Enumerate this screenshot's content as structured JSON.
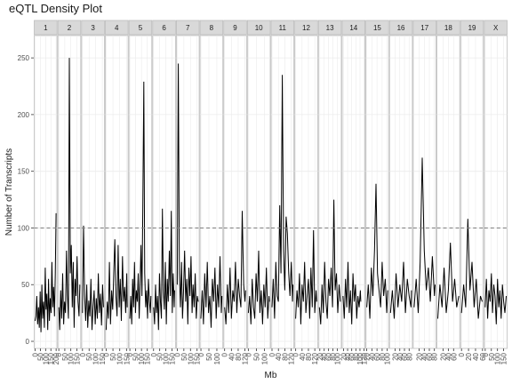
{
  "chart_data": {
    "type": "line",
    "title": "eQTL Density Plot",
    "xlabel": "Mb",
    "ylabel": "Number of Transcripts",
    "ylim": [
      0,
      265
    ],
    "y_ticks": [
      0,
      50,
      100,
      150,
      200,
      250
    ],
    "threshold": 100,
    "grid": true,
    "panels": [
      {
        "name": "1",
        "x_ticks": [
          "0",
          "50",
          "100",
          "150",
          "200"
        ],
        "x": [
          0,
          8,
          16,
          24,
          32,
          40,
          48,
          56,
          64,
          72,
          80,
          88,
          96,
          104,
          112,
          120,
          128,
          136,
          144,
          152,
          160,
          168,
          176,
          184,
          192,
          200
        ],
        "values": [
          18,
          22,
          40,
          15,
          30,
          12,
          44,
          8,
          50,
          20,
          35,
          12,
          65,
          28,
          42,
          10,
          55,
          18,
          38,
          25,
          70,
          30,
          48,
          22,
          60,
          113
        ]
      },
      {
        "name": "2",
        "x_ticks": [
          "0",
          "50",
          "100",
          "150"
        ],
        "x": [
          0,
          8,
          16,
          24,
          32,
          40,
          48,
          56,
          64,
          72,
          80,
          88,
          96,
          104,
          112,
          120,
          128,
          136,
          144,
          152,
          160,
          168,
          175
        ],
        "values": [
          30,
          10,
          45,
          20,
          60,
          15,
          35,
          25,
          80,
          40,
          20,
          250,
          60,
          85,
          30,
          70,
          12,
          55,
          40,
          75,
          35,
          22,
          50
        ]
      },
      {
        "name": "3",
        "x_ticks": [
          "0",
          "50",
          "100",
          "150"
        ],
        "x": [
          0,
          8,
          16,
          24,
          32,
          40,
          48,
          56,
          64,
          72,
          80,
          88,
          96,
          104,
          112,
          120,
          128,
          136,
          144,
          152,
          159
        ],
        "values": [
          25,
          102,
          40,
          18,
          50,
          12,
          36,
          22,
          55,
          10,
          30,
          45,
          15,
          38,
          20,
          60,
          25,
          42,
          14,
          50,
          30
        ]
      },
      {
        "name": "4",
        "x_ticks": [
          "0",
          "50",
          "100",
          "150"
        ],
        "x": [
          0,
          8,
          16,
          24,
          32,
          40,
          48,
          56,
          64,
          72,
          80,
          88,
          96,
          104,
          112,
          120,
          128,
          136,
          144,
          152,
          155
        ],
        "values": [
          10,
          35,
          20,
          70,
          15,
          45,
          28,
          60,
          90,
          40,
          22,
          85,
          30,
          55,
          18,
          75,
          35,
          48,
          25,
          60,
          30
        ]
      },
      {
        "name": "5",
        "x_ticks": [
          "0",
          "50",
          "100",
          "150"
        ],
        "x": [
          0,
          8,
          16,
          24,
          32,
          40,
          48,
          56,
          64,
          72,
          80,
          88,
          96,
          104,
          112,
          120,
          128,
          136,
          144,
          152,
          160,
          168,
          176,
          181
        ],
        "values": [
          20,
          40,
          15,
          55,
          30,
          70,
          25,
          45,
          35,
          60,
          20,
          50,
          85,
          40,
          120,
          229,
          60,
          30,
          45,
          20,
          55,
          35,
          25,
          40
        ]
      },
      {
        "name": "6",
        "x_ticks": [
          "0",
          "50",
          "100",
          "150"
        ],
        "x": [
          0,
          8,
          16,
          24,
          32,
          40,
          48,
          56,
          64,
          72,
          80,
          88,
          96,
          104,
          112,
          120,
          128,
          136,
          144,
          152,
          160,
          168,
          171
        ],
        "values": [
          30,
          15,
          50,
          25,
          40,
          10,
          60,
          35,
          20,
          117,
          45,
          28,
          70,
          15,
          55,
          35,
          80,
          40,
          115,
          25,
          60,
          30,
          45
        ]
      },
      {
        "name": "7",
        "x_ticks": [
          "0",
          "50",
          "100",
          "150"
        ],
        "x": [
          0,
          8,
          16,
          24,
          32,
          40,
          48,
          56,
          64,
          72,
          80,
          88,
          96,
          104,
          112,
          120,
          128,
          136,
          144,
          152,
          159
        ],
        "values": [
          50,
          245,
          60,
          30,
          70,
          20,
          45,
          80,
          35,
          55,
          15,
          65,
          40,
          75,
          25,
          50,
          30,
          60,
          20,
          40,
          35
        ]
      },
      {
        "name": "8",
        "x_ticks": [
          "0",
          "50",
          "100"
        ],
        "x": [
          0,
          8,
          16,
          24,
          32,
          40,
          48,
          56,
          64,
          72,
          80,
          88,
          96,
          104,
          112,
          120,
          128,
          132
        ],
        "values": [
          20,
          45,
          15,
          60,
          30,
          70,
          25,
          40,
          12,
          55,
          35,
          65,
          20,
          50,
          30,
          75,
          25,
          40
        ]
      },
      {
        "name": "9",
        "x_ticks": [
          "0",
          "40",
          "80",
          "120"
        ],
        "x": [
          0,
          8,
          16,
          24,
          32,
          40,
          48,
          56,
          64,
          72,
          80,
          88,
          96,
          104,
          112,
          120,
          124
        ],
        "values": [
          30,
          15,
          50,
          25,
          65,
          20,
          45,
          35,
          70,
          25,
          55,
          40,
          30,
          115,
          50,
          35,
          45
        ]
      },
      {
        "name": "10",
        "x_ticks": [
          "0",
          "50",
          "100"
        ],
        "x": [
          0,
          8,
          16,
          24,
          32,
          40,
          48,
          56,
          64,
          72,
          80,
          88,
          96,
          104,
          112,
          120,
          128,
          130
        ],
        "values": [
          25,
          40,
          15,
          55,
          30,
          20,
          60,
          35,
          80,
          25,
          45,
          15,
          50,
          30,
          65,
          20,
          40,
          35
        ]
      },
      {
        "name": "11",
        "x_ticks": [
          "0",
          "40",
          "80",
          "120"
        ],
        "x": [
          0,
          8,
          16,
          24,
          32,
          40,
          48,
          56,
          64,
          72,
          80,
          88,
          96,
          104,
          112,
          120,
          128,
          131
        ],
        "values": [
          30,
          55,
          20,
          70,
          40,
          35,
          120,
          60,
          235,
          80,
          45,
          110,
          95,
          60,
          40,
          70,
          35,
          50
        ]
      },
      {
        "name": "12",
        "x_ticks": [
          "0",
          "40",
          "80",
          "120"
        ],
        "x": [
          0,
          8,
          16,
          24,
          32,
          40,
          48,
          56,
          64,
          72,
          80,
          88,
          96,
          104,
          112,
          120,
          128,
          132
        ],
        "values": [
          20,
          45,
          30,
          60,
          15,
          50,
          35,
          70,
          25,
          40,
          55,
          20,
          65,
          30,
          98,
          25,
          45,
          35
        ]
      },
      {
        "name": "13",
        "x_ticks": [
          "20",
          "40",
          "60",
          "80",
          "100"
        ],
        "x": [
          18,
          24,
          30,
          36,
          42,
          48,
          54,
          60,
          66,
          72,
          78,
          84,
          90,
          96,
          102,
          108,
          114
        ],
        "values": [
          30,
          15,
          50,
          25,
          70,
          35,
          20,
          55,
          40,
          65,
          30,
          125,
          45,
          60,
          25,
          50,
          35
        ]
      },
      {
        "name": "14",
        "x_ticks": [
          "20",
          "40",
          "60",
          "80",
          "100",
          "120"
        ],
        "x": [
          18,
          24,
          30,
          36,
          42,
          48,
          54,
          60,
          66,
          72,
          78,
          84,
          90,
          96,
          102,
          104
        ],
        "values": [
          40,
          20,
          55,
          30,
          70,
          25,
          45,
          15,
          60,
          35,
          50,
          20,
          40,
          30,
          45,
          35
        ]
      },
      {
        "name": "15",
        "x_ticks": [
          "20",
          "40",
          "60",
          "80",
          "100"
        ],
        "x": [
          20,
          26,
          32,
          38,
          44,
          50,
          56,
          62,
          68,
          74,
          80,
          86,
          92,
          98,
          102
        ],
        "values": [
          30,
          50,
          20,
          65,
          40,
          80,
          139,
          60,
          45,
          30,
          70,
          40,
          55,
          25,
          45
        ]
      },
      {
        "name": "16",
        "x_ticks": [
          "20",
          "40",
          "60",
          "80"
        ],
        "x": [
          0,
          8,
          16,
          24,
          32,
          40,
          48,
          56,
          64,
          72,
          80,
          88,
          90
        ],
        "values": [
          25,
          45,
          20,
          60,
          30,
          50,
          35,
          70,
          25,
          55,
          40,
          30,
          45
        ]
      },
      {
        "name": "17",
        "x_ticks": [
          "20",
          "40",
          "60",
          "80"
        ],
        "x": [
          0,
          8,
          16,
          24,
          32,
          40,
          48,
          56,
          64,
          72,
          80,
          83
        ],
        "values": [
          30,
          55,
          25,
          70,
          162,
          80,
          45,
          65,
          35,
          75,
          40,
          50
        ]
      },
      {
        "name": "18",
        "x_ticks": [
          "20",
          "40",
          "60"
        ],
        "x": [
          0,
          8,
          16,
          24,
          32,
          40,
          48,
          56,
          64,
          72,
          80
        ],
        "values": [
          20,
          50,
          30,
          65,
          25,
          45,
          87,
          35,
          55,
          30,
          40
        ]
      },
      {
        "name": "19",
        "x_ticks": [
          "0",
          "20",
          "40",
          "60"
        ],
        "x": [
          0,
          6,
          12,
          18,
          24,
          30,
          36,
          42,
          48,
          54,
          59
        ],
        "values": [
          25,
          50,
          30,
          108,
          45,
          70,
          30,
          55,
          20,
          40,
          35
        ]
      },
      {
        "name": "X",
        "x_ticks": [
          "0",
          "50",
          "100",
          "150"
        ],
        "x": [
          0,
          10,
          20,
          30,
          40,
          50,
          60,
          70,
          80,
          90,
          100,
          110,
          120,
          130,
          140,
          150,
          160,
          171
        ],
        "values": [
          30,
          55,
          20,
          45,
          35,
          60,
          25,
          50,
          40,
          15,
          55,
          30,
          45,
          20,
          50,
          35,
          25,
          40
        ]
      }
    ]
  }
}
